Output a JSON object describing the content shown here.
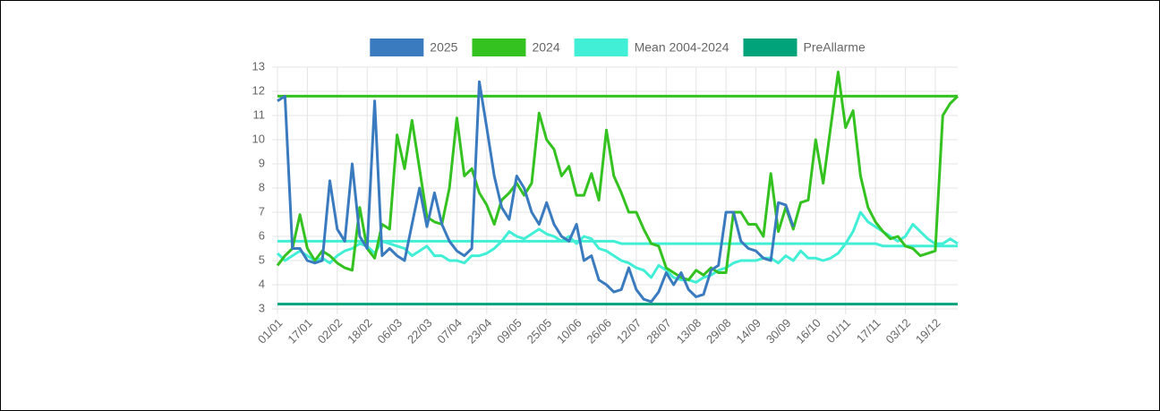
{
  "chart_data": {
    "type": "line",
    "categories": [
      "01/01",
      null,
      null,
      null,
      "17/01",
      null,
      null,
      null,
      "02/02",
      null,
      null,
      null,
      "18/02",
      null,
      null,
      null,
      "06/03",
      null,
      null,
      null,
      "22/03",
      null,
      null,
      null,
      "07/04",
      null,
      null,
      null,
      "23/04",
      null,
      null,
      null,
      "09/05",
      null,
      null,
      null,
      "25/05",
      null,
      null,
      null,
      "10/06",
      null,
      null,
      null,
      "26/06",
      null,
      null,
      null,
      "12/07",
      null,
      null,
      null,
      "28/07",
      null,
      null,
      null,
      "13/08",
      null,
      null,
      null,
      "29/08",
      null,
      null,
      null,
      "14/09",
      null,
      null,
      null,
      "30/09",
      null,
      null,
      null,
      "16/10",
      null,
      null,
      null,
      "01/11",
      null,
      null,
      null,
      "17/11",
      null,
      null,
      null,
      "03/12",
      null,
      null,
      null,
      "19/12",
      null,
      null,
      null
    ],
    "series": [
      {
        "name": "2025",
        "color": "#3a7bbf",
        "values": [
          11.6,
          11.8,
          5.5,
          5.5,
          5.0,
          4.9,
          5.0,
          8.3,
          6.3,
          5.8,
          9.0,
          6.0,
          5.5,
          11.6,
          5.2,
          5.5,
          5.2,
          5.0,
          6.5,
          8.0,
          6.4,
          7.8,
          6.5,
          5.8,
          5.4,
          5.2,
          5.5,
          12.4,
          10.5,
          8.5,
          7.2,
          6.7,
          8.5,
          8.0,
          7.0,
          6.5,
          7.4,
          6.5,
          6.0,
          5.8,
          6.5,
          5.0,
          5.2,
          4.2,
          4.0,
          3.7,
          3.8,
          4.7,
          3.8,
          3.4,
          3.3,
          3.7,
          4.5,
          4.0,
          4.5,
          3.8,
          3.5,
          3.6,
          4.6,
          4.8,
          7.0,
          7.0,
          5.8,
          5.5,
          5.4,
          5.1,
          5.0,
          7.4,
          7.3,
          6.4,
          null,
          null,
          null,
          null,
          null,
          null,
          null,
          null,
          null,
          null,
          null,
          null,
          null,
          null,
          null,
          null,
          null,
          null,
          null,
          null,
          null,
          null
        ]
      },
      {
        "name": "2024",
        "color": "#33c21f",
        "values": [
          4.8,
          5.2,
          5.5,
          6.9,
          5.5,
          5.0,
          5.4,
          5.2,
          4.9,
          4.7,
          4.6,
          7.2,
          5.5,
          5.1,
          6.5,
          6.3,
          10.2,
          8.8,
          10.8,
          8.8,
          6.8,
          6.6,
          6.5,
          8.0,
          10.9,
          8.5,
          8.8,
          7.8,
          7.3,
          6.5,
          7.5,
          7.8,
          8.2,
          7.7,
          8.2,
          11.1,
          10.0,
          9.6,
          8.5,
          8.9,
          7.7,
          7.7,
          8.6,
          7.5,
          10.4,
          8.5,
          7.8,
          7.0,
          7.0,
          6.3,
          5.7,
          5.6,
          4.7,
          4.5,
          4.3,
          4.2,
          4.6,
          4.4,
          4.7,
          4.5,
          4.5,
          7.0,
          7.0,
          6.5,
          6.5,
          6.0,
          8.6,
          6.2,
          7.2,
          6.3,
          7.4,
          7.5,
          10.0,
          8.2,
          10.5,
          12.8,
          10.5,
          11.2,
          8.5,
          7.2,
          6.6,
          6.2,
          5.9,
          6.0,
          5.6,
          5.5,
          5.2,
          5.3,
          5.4,
          11.0,
          11.5,
          11.8
        ]
      },
      {
        "name": "Mean 2004-2024",
        "color": "#40efd5",
        "values": [
          5.3,
          5.0,
          5.2,
          5.4,
          5.2,
          5.0,
          5.1,
          4.9,
          5.2,
          5.4,
          5.5,
          5.7,
          5.6,
          5.3,
          5.8,
          5.7,
          5.6,
          5.5,
          5.2,
          5.4,
          5.6,
          5.2,
          5.2,
          5.0,
          5.0,
          4.9,
          5.2,
          5.2,
          5.3,
          5.5,
          5.8,
          6.2,
          6.0,
          5.9,
          6.1,
          6.3,
          6.1,
          6.0,
          5.8,
          6.0,
          5.7,
          6.0,
          5.9,
          5.5,
          5.4,
          5.2,
          5.0,
          4.9,
          4.7,
          4.6,
          4.3,
          4.8,
          4.6,
          4.3,
          4.2,
          4.2,
          4.1,
          4.3,
          4.4,
          4.6,
          4.7,
          4.9,
          5.0,
          5.0,
          5.0,
          5.1,
          5.1,
          4.9,
          5.2,
          5.0,
          5.4,
          5.1,
          5.1,
          5.0,
          5.1,
          5.3,
          5.7,
          6.2,
          7.0,
          6.6,
          6.4,
          6.2,
          6.0,
          5.8,
          6.0,
          6.5,
          6.2,
          5.9,
          5.7,
          5.7,
          5.9,
          5.7
        ]
      },
      {
        "name": "PreAllarme",
        "color": "#00a37a",
        "values": [
          3.2,
          3.2,
          3.2,
          3.2,
          3.2,
          3.2,
          3.2,
          3.2,
          3.2,
          3.2,
          3.2,
          3.2,
          3.2,
          3.2,
          3.2,
          3.2,
          3.2,
          3.2,
          3.2,
          3.2,
          3.2,
          3.2,
          3.2,
          3.2,
          3.2,
          3.2,
          3.2,
          3.2,
          3.2,
          3.2,
          3.2,
          3.2,
          3.2,
          3.2,
          3.2,
          3.2,
          3.2,
          3.2,
          3.2,
          3.2,
          3.2,
          3.2,
          3.2,
          3.2,
          3.2,
          3.2,
          3.2,
          3.2,
          3.2,
          3.2,
          3.2,
          3.2,
          3.2,
          3.2,
          3.2,
          3.2,
          3.2,
          3.2,
          3.2,
          3.2,
          3.2,
          3.2,
          3.2,
          3.2,
          3.2,
          3.2,
          3.2,
          3.2,
          3.2,
          3.2,
          3.2,
          3.2,
          3.2,
          3.2,
          3.2,
          3.2,
          3.2,
          3.2,
          3.2,
          3.2,
          3.2,
          3.2,
          3.2,
          3.2,
          3.2,
          3.2,
          3.2,
          3.2,
          3.2,
          3.2,
          3.2,
          3.2
        ]
      },
      {
        "color": "#33c21f",
        "values": [
          11.8,
          11.8,
          11.8,
          11.8,
          11.8,
          11.8,
          11.8,
          11.8,
          11.8,
          11.8,
          11.8,
          11.8,
          11.8,
          11.8,
          11.8,
          11.8,
          11.8,
          11.8,
          11.8,
          11.8,
          11.8,
          11.8,
          11.8,
          11.8,
          11.8,
          11.8,
          11.8,
          11.8,
          11.8,
          11.8,
          11.8,
          11.8,
          11.8,
          11.8,
          11.8,
          11.8,
          11.8,
          11.8,
          11.8,
          11.8,
          11.8,
          11.8,
          11.8,
          11.8,
          11.8,
          11.8,
          11.8,
          11.8,
          11.8,
          11.8,
          11.8,
          11.8,
          11.8,
          11.8,
          11.8,
          11.8,
          11.8,
          11.8,
          11.8,
          11.8,
          11.8,
          11.8,
          11.8,
          11.8,
          11.8,
          11.8,
          11.8,
          11.8,
          11.8,
          11.8,
          11.8,
          11.8,
          11.8,
          11.8,
          11.8,
          11.8,
          11.8,
          11.8,
          11.8,
          11.8,
          11.8,
          11.8,
          11.8,
          11.8,
          11.8,
          11.8,
          11.8,
          11.8,
          11.8,
          11.8,
          11.8,
          11.8
        ]
      },
      {
        "color": "#40efd5",
        "values": [
          5.8,
          5.8,
          5.8,
          5.8,
          5.8,
          5.8,
          5.8,
          5.8,
          5.8,
          5.8,
          5.8,
          5.8,
          5.8,
          5.8,
          5.8,
          5.8,
          5.8,
          5.8,
          5.8,
          5.8,
          5.8,
          5.8,
          5.8,
          5.8,
          5.8,
          5.8,
          5.8,
          5.8,
          5.8,
          5.8,
          5.8,
          5.8,
          5.8,
          5.8,
          5.8,
          5.8,
          5.8,
          5.8,
          5.8,
          5.8,
          5.8,
          5.8,
          5.8,
          5.8,
          5.8,
          5.8,
          5.7,
          5.7,
          5.7,
          5.7,
          5.7,
          5.7,
          5.7,
          5.7,
          5.7,
          5.7,
          5.7,
          5.7,
          5.7,
          5.7,
          5.7,
          5.7,
          5.7,
          5.7,
          5.7,
          5.7,
          5.7,
          5.7,
          5.7,
          5.7,
          5.7,
          5.7,
          5.7,
          5.7,
          5.7,
          5.7,
          5.7,
          5.7,
          5.7,
          5.7,
          5.7,
          5.6,
          5.6,
          5.6,
          5.6,
          5.6,
          5.6,
          5.6,
          5.6,
          5.6,
          5.6,
          5.6
        ]
      }
    ],
    "ylim": [
      3,
      13
    ],
    "yticks": [
      3,
      4,
      5,
      6,
      7,
      8,
      9,
      10,
      11,
      12,
      13
    ],
    "grid": true,
    "legend": "top"
  }
}
